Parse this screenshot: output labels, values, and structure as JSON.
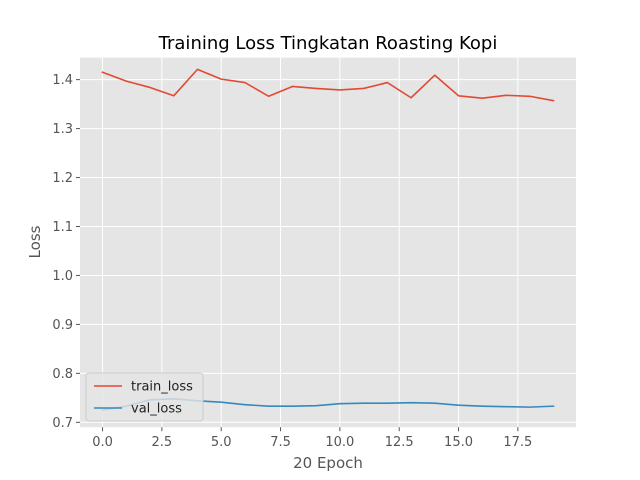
{
  "chart_data": {
    "type": "line",
    "title": "Training Loss Tingkatan Roasting Kopi",
    "xlabel": "20 Epoch",
    "ylabel": "Loss",
    "x": [
      0,
      1,
      2,
      3,
      4,
      5,
      6,
      7,
      8,
      9,
      10,
      11,
      12,
      13,
      14,
      15,
      16,
      17,
      18,
      19
    ],
    "xlim": [
      -0.95,
      19.95
    ],
    "ylim": [
      0.69,
      1.445
    ],
    "xticks": [
      0.0,
      2.5,
      5.0,
      7.5,
      10.0,
      12.5,
      15.0,
      17.5
    ],
    "xtick_labels": [
      "0.0",
      "2.5",
      "5.0",
      "7.5",
      "10.0",
      "12.5",
      "15.0",
      "17.5"
    ],
    "yticks": [
      0.7,
      0.8,
      0.9,
      1.0,
      1.1,
      1.2,
      1.3,
      1.4
    ],
    "ytick_labels": [
      "0.7",
      "0.8",
      "0.9",
      "1.0",
      "1.1",
      "1.2",
      "1.3",
      "1.4"
    ],
    "grid": true,
    "legend_position": "lower-left",
    "series": [
      {
        "name": "train_loss",
        "color": "#E24A33",
        "values": [
          1.415,
          1.397,
          1.384,
          1.367,
          1.421,
          1.401,
          1.394,
          1.366,
          1.386,
          1.382,
          1.379,
          1.382,
          1.394,
          1.363,
          1.409,
          1.367,
          1.362,
          1.368,
          1.366,
          1.357
        ]
      },
      {
        "name": "val_loss",
        "color": "#348ABD",
        "values": [
          0.725,
          0.733,
          0.746,
          0.748,
          0.744,
          0.741,
          0.736,
          0.733,
          0.733,
          0.734,
          0.738,
          0.739,
          0.739,
          0.74,
          0.739,
          0.735,
          0.733,
          0.732,
          0.731,
          0.733
        ]
      }
    ]
  }
}
